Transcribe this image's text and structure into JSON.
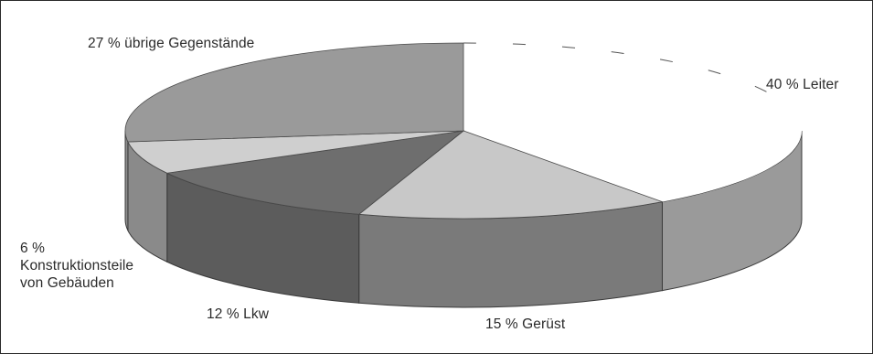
{
  "chart_data": {
    "type": "pie",
    "title": "",
    "slices": [
      {
        "label": "Leiter",
        "value": 40,
        "display": "40 % Leiter",
        "color": "#ffffff"
      },
      {
        "label": "Gerüst",
        "value": 15,
        "display": "15 % Gerüst",
        "color": "#c8c8c8"
      },
      {
        "label": "Lkw",
        "value": 12,
        "display": "12 % Lkw",
        "color": "#6e6e6e"
      },
      {
        "label": "Konstruktionsteile von Gebäuden",
        "value": 6,
        "display_lines": [
          "6 %",
          "Konstruktionsteile",
          "von Gebäuden"
        ],
        "color": "#cfcfcf"
      },
      {
        "label": "übrige Gegenstände",
        "value": 27,
        "display": "27 % übrige Gegenstände",
        "color": "#9a9a9a"
      }
    ],
    "style": "3d-pie"
  }
}
